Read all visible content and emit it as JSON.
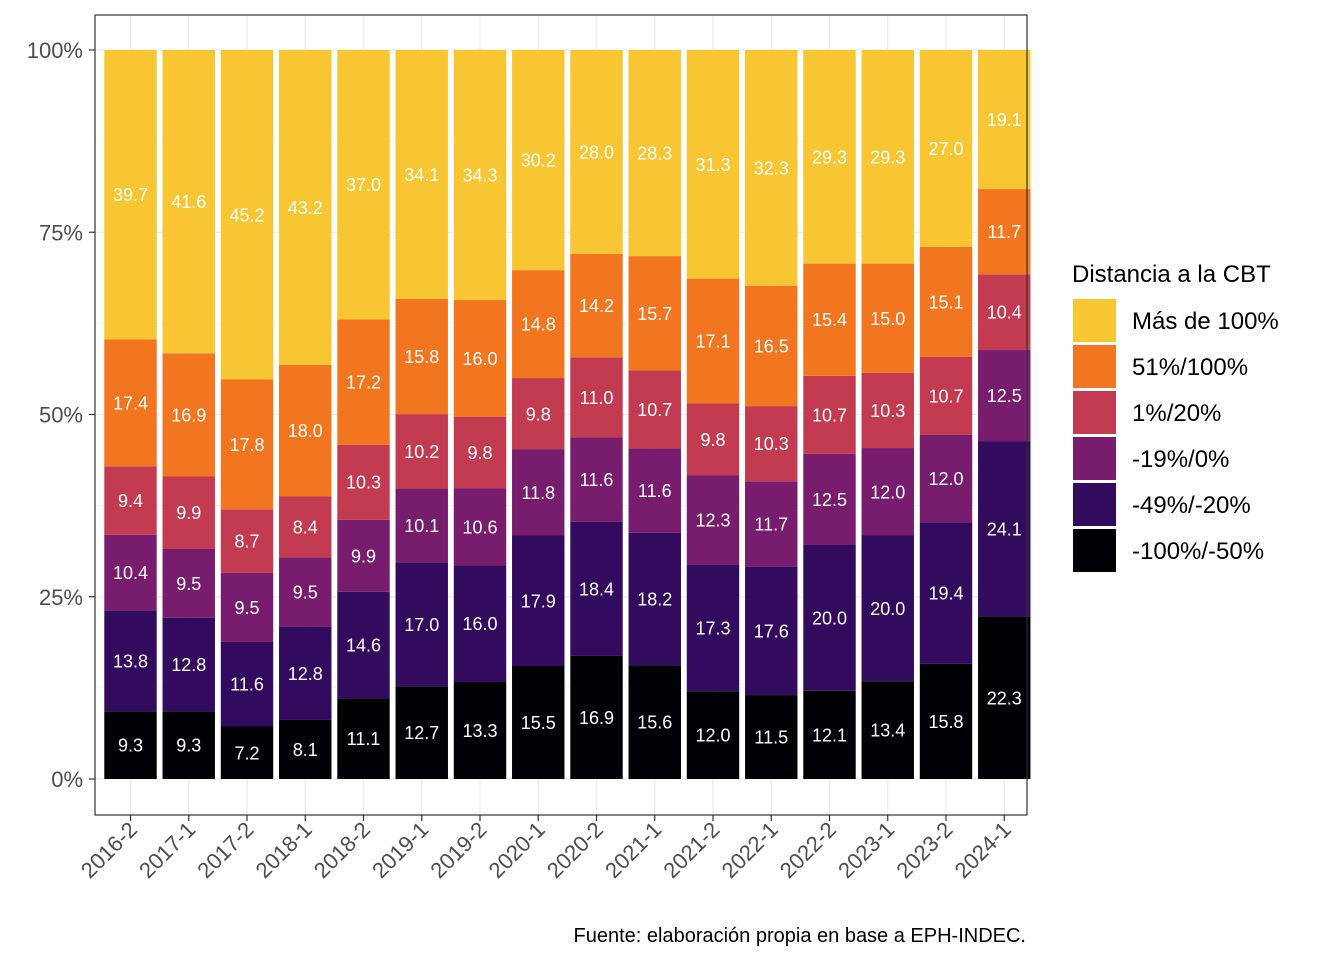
{
  "chart_data": {
    "type": "bar",
    "stacked": true,
    "normalized": true,
    "categories": [
      "2016-2",
      "2017-1",
      "2017-2",
      "2018-1",
      "2018-2",
      "2019-1",
      "2019-2",
      "2020-1",
      "2020-2",
      "2021-1",
      "2021-2",
      "2022-1",
      "2022-2",
      "2023-1",
      "2023-2",
      "2024-1"
    ],
    "ylim": [
      0,
      1
    ],
    "yticks": [
      "0%",
      "25%",
      "50%",
      "75%",
      "100%"
    ],
    "ytick_values": [
      0,
      0.25,
      0.5,
      0.75,
      1
    ],
    "grid": true,
    "legend": {
      "title": "Distancia a la CBT",
      "position": "right"
    },
    "series": [
      {
        "name": "-100%/-50%",
        "color": "#000004",
        "values": [
          9.3,
          9.3,
          7.2,
          8.1,
          11.1,
          12.7,
          13.3,
          15.5,
          16.9,
          15.6,
          12.0,
          11.5,
          12.1,
          13.4,
          15.8,
          22.3
        ]
      },
      {
        "name": "-49%/-20%",
        "color": "#320a5e",
        "values": [
          13.8,
          12.8,
          11.6,
          12.8,
          14.6,
          17.0,
          16.0,
          17.9,
          18.4,
          18.2,
          17.3,
          17.6,
          20.0,
          20.0,
          19.4,
          24.1
        ]
      },
      {
        "name": "-19%/0%",
        "color": "#781c6d",
        "values": [
          10.4,
          9.5,
          9.5,
          9.5,
          9.9,
          10.1,
          10.6,
          11.8,
          11.6,
          11.6,
          12.3,
          11.7,
          12.5,
          12.0,
          12.0,
          12.5
        ]
      },
      {
        "name": "1%/20%",
        "color": "#c23b50",
        "values": [
          9.4,
          9.9,
          8.7,
          8.4,
          10.3,
          10.2,
          9.8,
          9.8,
          11.0,
          10.7,
          9.8,
          10.3,
          10.7,
          10.3,
          10.7,
          10.4
        ]
      },
      {
        "name": "51%/100%",
        "color": "#f1761f",
        "values": [
          17.4,
          16.9,
          17.8,
          18.0,
          17.2,
          15.8,
          16.0,
          14.8,
          14.2,
          15.7,
          17.1,
          16.5,
          15.4,
          15.0,
          15.1,
          11.7
        ]
      },
      {
        "name": "Más de 100%",
        "color": "#f8c632",
        "values": [
          39.7,
          41.6,
          45.2,
          43.2,
          37.0,
          34.1,
          34.3,
          30.2,
          28.0,
          28.3,
          31.3,
          32.3,
          29.3,
          29.3,
          27.0,
          19.1
        ]
      }
    ],
    "caption": "Fuente: elaboración propia en base a EPH-INDEC."
  }
}
